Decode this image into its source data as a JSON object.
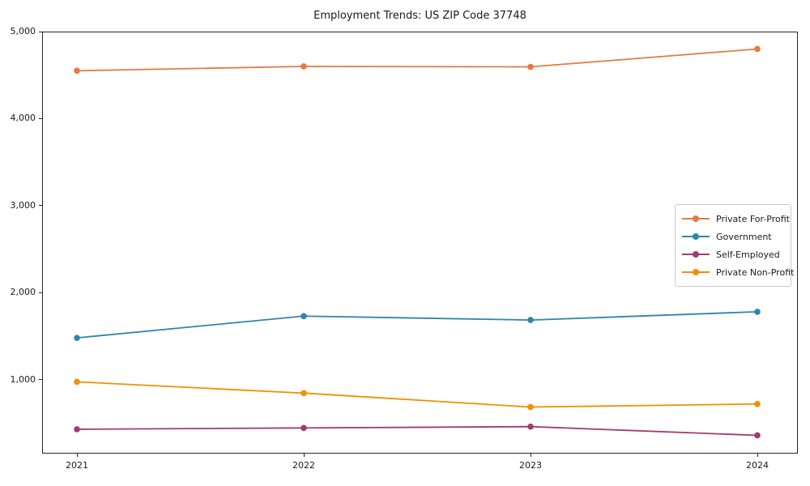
{
  "chart_data": {
    "type": "line",
    "title": "Employment Trends: US ZIP Code 37748",
    "x": [
      2021,
      2022,
      2023,
      2024
    ],
    "xtick_labels": [
      "2021",
      "2022",
      "2023",
      "2024"
    ],
    "series": [
      {
        "name": "Private For-Profit",
        "color": "#e8793f",
        "values": [
          4550,
          4600,
          4595,
          4800
        ]
      },
      {
        "name": "Government",
        "color": "#2e86ab",
        "values": [
          1480,
          1730,
          1685,
          1780
        ]
      },
      {
        "name": "Self-Employed",
        "color": "#a23b72",
        "values": [
          430,
          445,
          460,
          360
        ]
      },
      {
        "name": "Private Non-Profit",
        "color": "#f18f01",
        "values": [
          975,
          845,
          685,
          720
        ]
      }
    ],
    "ylim": [
      150,
      5000
    ],
    "yticks": [
      1000,
      2000,
      3000,
      4000,
      5000
    ],
    "ytick_labels": [
      "1,000",
      "2,000",
      "3,000",
      "4,000",
      "5,000"
    ],
    "legend_position": "center right",
    "grid": false,
    "marker": "circle",
    "axis_color": "#262626"
  }
}
